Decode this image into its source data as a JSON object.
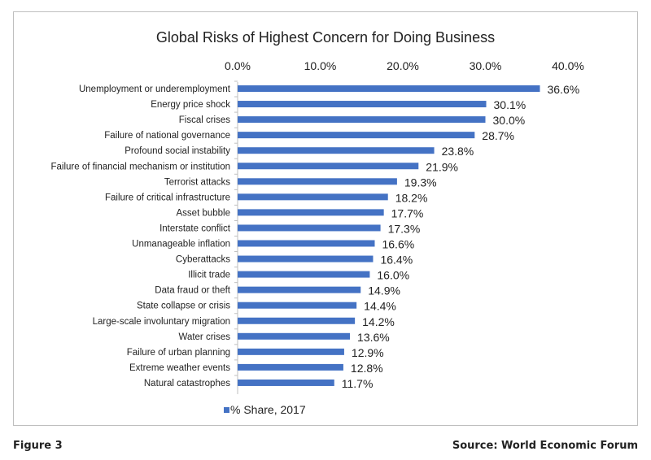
{
  "chart_data": {
    "type": "bar",
    "orientation": "horizontal",
    "title": "Global Risks of Highest Concern for Doing Business",
    "categories": [
      "Unemployment or underemployment",
      "Energy price shock",
      "Fiscal crises",
      "Failure of national governance",
      "Profound social instability",
      "Failure of financial mechanism or institution",
      "Terrorist attacks",
      "Failure of critical infrastructure",
      "Asset bubble",
      "Interstate conflict",
      "Unmanageable inflation",
      "Cyberattacks",
      "Illicit trade",
      "Data fraud or theft",
      "State collapse or crisis",
      "Large-scale involuntary migration",
      "Water crises",
      "Failure of urban planning",
      "Extreme weather events",
      "Natural catastrophes"
    ],
    "series": [
      {
        "name": "% Share, 2017",
        "values": [
          36.6,
          30.1,
          30.0,
          28.7,
          23.8,
          21.9,
          19.3,
          18.2,
          17.7,
          17.3,
          16.6,
          16.4,
          16.0,
          14.9,
          14.4,
          14.2,
          13.6,
          12.9,
          12.8,
          11.7
        ],
        "value_labels": [
          "36.6%",
          "30.1%",
          "30.0%",
          "28.7%",
          "23.8%",
          "21.9%",
          "19.3%",
          "18.2%",
          "17.7%",
          "17.3%",
          "16.6%",
          "16.4%",
          "16.0%",
          "14.9%",
          "14.4%",
          "14.2%",
          "13.6%",
          "12.9%",
          "12.8%",
          "11.7%"
        ]
      }
    ],
    "x_ticks": [
      "0.0%",
      "10.0%",
      "20.0%",
      "30.0%",
      "40.0%"
    ],
    "xlim": [
      0,
      40
    ],
    "x_axis_position": "top",
    "grid": false,
    "legend": "bottom",
    "colors": {
      "bar": "#4472c4"
    }
  },
  "footer": {
    "figure": "Figure 3",
    "source": "Source: World Economic Forum"
  }
}
